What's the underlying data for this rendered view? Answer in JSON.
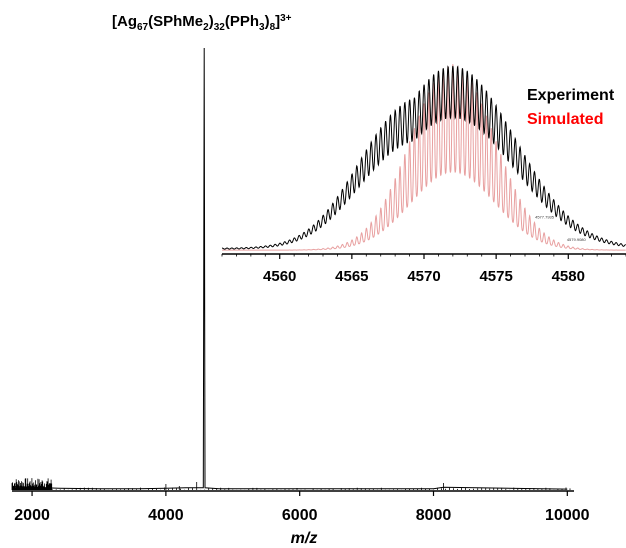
{
  "chart_data": [
    {
      "type": "line",
      "title": "",
      "xlabel": "m/z",
      "ylabel": "",
      "xlim": [
        1700,
        10100
      ],
      "ylim": [
        0,
        1.0
      ],
      "x_ticks": [
        2000,
        4000,
        6000,
        8000,
        10000
      ],
      "grid": false,
      "annotation": {
        "base": "[Ag",
        "sub1": "67",
        "part2": "(SPhMe",
        "sub2": "2",
        "part3": ")",
        "sub3": "32",
        "part4": "(PPh",
        "sub4": "3",
        "part5": ")",
        "sub5": "8",
        "part6": "]",
        "sup": "3+"
      },
      "series": [
        {
          "color": "#000000",
          "x": [
            1700,
            2000,
            2400,
            3000,
            3600,
            4000,
            4300,
            4560,
            4572,
            4585,
            4800,
            6000,
            8000,
            8150,
            10000
          ],
          "y": [
            0.008,
            0.006,
            0.004,
            0.003,
            0.003,
            0.004,
            0.005,
            0.005,
            1.0,
            0.005,
            0.003,
            0.003,
            0.003,
            0.006,
            0.002
          ]
        }
      ]
    },
    {
      "type": "line",
      "title": "",
      "xlabel": "",
      "ylabel": "",
      "xlim": [
        4556,
        4584
      ],
      "ylim": [
        0,
        1.0
      ],
      "x_ticks": [
        4560,
        4565,
        4570,
        4575,
        4580
      ],
      "grid": false,
      "legend": "top-right",
      "series": [
        {
          "name": "Experiment",
          "color": "#000000",
          "center": 4572.0,
          "sigma": 4.3,
          "shoulder_center": 4567.5,
          "shoulder_height": 0.32,
          "period": 0.333
        },
        {
          "name": "Simulated",
          "color": "#e8a0a0",
          "legend_color": "#ff0000",
          "center": 4572.0,
          "sigma": 2.9,
          "period": 0.333
        }
      ],
      "peak_labels": [
        "4577.7935",
        "4579.9080"
      ]
    }
  ]
}
